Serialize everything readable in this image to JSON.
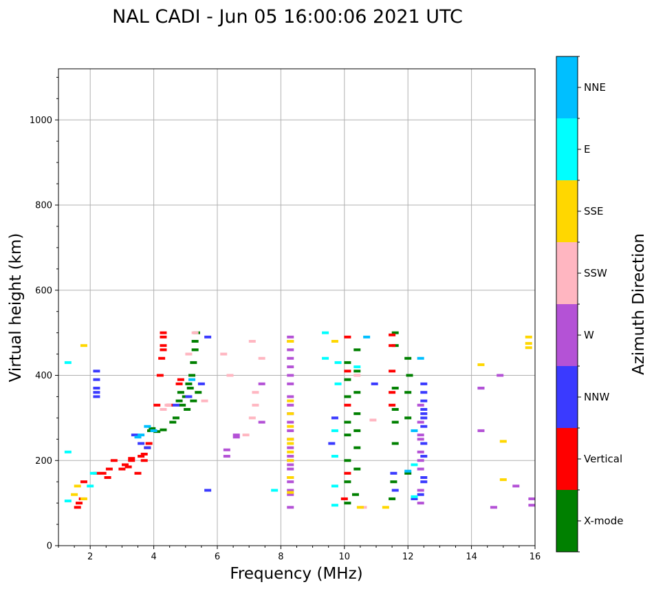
{
  "chart_data": {
    "type": "scatter",
    "title": "NAL CADI - Jun 05 16:00:06 2021 UTC",
    "xlabel": "Frequency (MHz)",
    "ylabel": "Virtual height (km)",
    "xlim": [
      1,
      16
    ],
    "ylim": [
      0,
      1120
    ],
    "xticks": [
      "2",
      "4",
      "6",
      "8",
      "10",
      "12",
      "14",
      "16"
    ],
    "yticks": [
      "0",
      "200",
      "400",
      "600",
      "800",
      "1000"
    ],
    "grid": true,
    "colorbar": {
      "label": "Azimuth Direction",
      "entries": [
        {
          "name": "X-mode",
          "color": "#008000"
        },
        {
          "name": "Vertical",
          "color": "#ff0000"
        },
        {
          "name": "NNW",
          "color": "#3a3aff"
        },
        {
          "name": "W",
          "color": "#b452d6"
        },
        {
          "name": "SSW",
          "color": "#ffb6c1"
        },
        {
          "name": "SSE",
          "color": "#ffd700"
        },
        {
          "name": "E",
          "color": "#00ffff"
        },
        {
          "name": "NNE",
          "color": "#00bfff"
        }
      ]
    },
    "series": [
      {
        "name": "X-mode",
        "color": "#008000",
        "points": [
          [
            3.9,
            270
          ],
          [
            3.95,
            275
          ],
          [
            4.1,
            268
          ],
          [
            4.3,
            272
          ],
          [
            4.6,
            290
          ],
          [
            4.7,
            300
          ],
          [
            4.8,
            340
          ],
          [
            4.85,
            360
          ],
          [
            4.9,
            330
          ],
          [
            5.0,
            350
          ],
          [
            5.1,
            380
          ],
          [
            5.15,
            370
          ],
          [
            5.2,
            400
          ],
          [
            5.25,
            430
          ],
          [
            5.3,
            460
          ],
          [
            5.3,
            480
          ],
          [
            5.35,
            500
          ],
          [
            5.05,
            320
          ],
          [
            5.25,
            340
          ],
          [
            5.4,
            360
          ],
          [
            10.1,
            100
          ],
          [
            10.1,
            150
          ],
          [
            10.1,
            200
          ],
          [
            10.1,
            260
          ],
          [
            10.1,
            290
          ],
          [
            10.1,
            350
          ],
          [
            10.1,
            390
          ],
          [
            10.1,
            430
          ],
          [
            10.35,
            120
          ],
          [
            10.4,
            180
          ],
          [
            10.4,
            230
          ],
          [
            10.4,
            270
          ],
          [
            10.4,
            310
          ],
          [
            10.4,
            360
          ],
          [
            10.4,
            410
          ],
          [
            10.4,
            460
          ],
          [
            11.5,
            110
          ],
          [
            11.55,
            150
          ],
          [
            11.6,
            240
          ],
          [
            11.6,
            290
          ],
          [
            11.6,
            320
          ],
          [
            11.6,
            370
          ],
          [
            11.6,
            470
          ],
          [
            11.6,
            500
          ],
          [
            12.0,
            170
          ],
          [
            12.0,
            300
          ],
          [
            12.0,
            360
          ],
          [
            12.0,
            440
          ],
          [
            12.05,
            400
          ]
        ]
      },
      {
        "name": "Vertical",
        "color": "#ff0000",
        "points": [
          [
            1.6,
            90
          ],
          [
            1.65,
            100
          ],
          [
            1.75,
            110
          ],
          [
            1.8,
            150
          ],
          [
            2.2,
            170
          ],
          [
            2.4,
            170
          ],
          [
            2.55,
            160
          ],
          [
            2.6,
            180
          ],
          [
            2.75,
            200
          ],
          [
            3.0,
            180
          ],
          [
            3.1,
            190
          ],
          [
            3.2,
            185
          ],
          [
            3.3,
            200
          ],
          [
            3.3,
            205
          ],
          [
            3.5,
            170
          ],
          [
            3.6,
            210
          ],
          [
            3.7,
            200
          ],
          [
            3.8,
            230
          ],
          [
            3.85,
            240
          ],
          [
            3.7,
            215
          ],
          [
            4.1,
            330
          ],
          [
            4.2,
            400
          ],
          [
            4.25,
            440
          ],
          [
            4.3,
            460
          ],
          [
            4.3,
            470
          ],
          [
            4.3,
            490
          ],
          [
            4.3,
            500
          ],
          [
            4.5,
            330
          ],
          [
            4.8,
            380
          ],
          [
            4.85,
            390
          ],
          [
            10.0,
            110
          ],
          [
            10.1,
            170
          ],
          [
            10.1,
            330
          ],
          [
            10.1,
            410
          ],
          [
            10.1,
            490
          ],
          [
            11.5,
            330
          ],
          [
            11.5,
            360
          ],
          [
            11.5,
            410
          ],
          [
            11.5,
            470
          ],
          [
            11.5,
            495
          ]
        ]
      },
      {
        "name": "NNW",
        "color": "#3a3aff",
        "points": [
          [
            2.2,
            350
          ],
          [
            2.2,
            360
          ],
          [
            2.2,
            370
          ],
          [
            2.2,
            390
          ],
          [
            2.2,
            410
          ],
          [
            3.4,
            260
          ],
          [
            3.6,
            240
          ],
          [
            3.8,
            230
          ],
          [
            4.7,
            330
          ],
          [
            5.1,
            350
          ],
          [
            5.5,
            380
          ],
          [
            5.7,
            130
          ],
          [
            5.7,
            490
          ],
          [
            9.6,
            240
          ],
          [
            9.7,
            300
          ],
          [
            10.95,
            380
          ],
          [
            11.55,
            170
          ],
          [
            11.6,
            130
          ],
          [
            12.2,
            110
          ],
          [
            12.4,
            120
          ],
          [
            12.5,
            150
          ],
          [
            12.5,
            160
          ],
          [
            12.5,
            210
          ],
          [
            12.5,
            240
          ],
          [
            12.5,
            280
          ],
          [
            12.5,
            300
          ],
          [
            12.5,
            310
          ],
          [
            12.5,
            320
          ],
          [
            12.5,
            340
          ],
          [
            12.5,
            360
          ],
          [
            12.5,
            380
          ],
          [
            14.3,
            370
          ]
        ]
      },
      {
        "name": "W",
        "color": "#b452d6",
        "points": [
          [
            6.3,
            210
          ],
          [
            6.3,
            225
          ],
          [
            6.6,
            255
          ],
          [
            6.6,
            260
          ],
          [
            7.4,
            380
          ],
          [
            7.4,
            290
          ],
          [
            8.3,
            90
          ],
          [
            8.3,
            120
          ],
          [
            8.3,
            130
          ],
          [
            8.3,
            150
          ],
          [
            8.3,
            160
          ],
          [
            8.3,
            180
          ],
          [
            8.3,
            190
          ],
          [
            8.3,
            200
          ],
          [
            8.3,
            210
          ],
          [
            8.3,
            230
          ],
          [
            8.3,
            250
          ],
          [
            8.3,
            270
          ],
          [
            8.3,
            290
          ],
          [
            8.3,
            310
          ],
          [
            8.3,
            330
          ],
          [
            8.3,
            350
          ],
          [
            8.3,
            380
          ],
          [
            8.3,
            400
          ],
          [
            8.3,
            420
          ],
          [
            8.3,
            440
          ],
          [
            8.3,
            460
          ],
          [
            8.3,
            480
          ],
          [
            8.3,
            490
          ],
          [
            12.4,
            100
          ],
          [
            12.4,
            130
          ],
          [
            12.4,
            180
          ],
          [
            12.4,
            200
          ],
          [
            12.4,
            220
          ],
          [
            12.4,
            250
          ],
          [
            12.4,
            260
          ],
          [
            12.4,
            290
          ],
          [
            12.4,
            330
          ],
          [
            14.3,
            270
          ],
          [
            14.3,
            370
          ],
          [
            14.7,
            90
          ],
          [
            14.9,
            400
          ],
          [
            15.4,
            140
          ],
          [
            15.9,
            95
          ],
          [
            15.9,
            110
          ]
        ]
      },
      {
        "name": "SSW",
        "color": "#ffb6c1",
        "points": [
          [
            4.3,
            320
          ],
          [
            4.45,
            330
          ],
          [
            5.1,
            450
          ],
          [
            5.3,
            500
          ],
          [
            5.6,
            340
          ],
          [
            6.2,
            450
          ],
          [
            6.4,
            400
          ],
          [
            6.9,
            260
          ],
          [
            7.1,
            300
          ],
          [
            7.2,
            330
          ],
          [
            7.2,
            360
          ],
          [
            7.4,
            440
          ],
          [
            7.1,
            480
          ],
          [
            10.6,
            90
          ],
          [
            10.9,
            295
          ],
          [
            10.4,
            400
          ]
        ]
      },
      {
        "name": "SSE",
        "color": "#ffd700",
        "points": [
          [
            1.5,
            120
          ],
          [
            1.6,
            140
          ],
          [
            1.8,
            110
          ],
          [
            1.8,
            470
          ],
          [
            8.3,
            125
          ],
          [
            8.3,
            160
          ],
          [
            8.3,
            200
          ],
          [
            8.3,
            220
          ],
          [
            8.3,
            240
          ],
          [
            8.3,
            250
          ],
          [
            8.3,
            280
          ],
          [
            8.3,
            310
          ],
          [
            8.3,
            340
          ],
          [
            8.3,
            480
          ],
          [
            9.7,
            480
          ],
          [
            10.5,
            90
          ],
          [
            11.3,
            90
          ],
          [
            14.3,
            425
          ],
          [
            15.0,
            245
          ],
          [
            15.0,
            155
          ],
          [
            15.8,
            465
          ],
          [
            15.8,
            475
          ],
          [
            15.8,
            490
          ]
        ]
      },
      {
        "name": "E",
        "color": "#00ffff",
        "points": [
          [
            1.3,
            105
          ],
          [
            1.3,
            220
          ],
          [
            1.3,
            430
          ],
          [
            2.0,
            140
          ],
          [
            2.1,
            170
          ],
          [
            7.8,
            130
          ],
          [
            9.4,
            440
          ],
          [
            9.4,
            500
          ],
          [
            9.7,
            95
          ],
          [
            9.7,
            140
          ],
          [
            9.7,
            210
          ],
          [
            9.7,
            270
          ],
          [
            9.8,
            380
          ],
          [
            9.8,
            430
          ],
          [
            10.4,
            420
          ],
          [
            12.2,
            115
          ],
          [
            12.2,
            190
          ]
        ]
      },
      {
        "name": "NNE",
        "color": "#00bfff",
        "points": [
          [
            3.5,
            255
          ],
          [
            3.6,
            260
          ],
          [
            3.8,
            280
          ],
          [
            4.0,
            270
          ],
          [
            5.2,
            390
          ],
          [
            10.7,
            490
          ],
          [
            12.0,
            175
          ],
          [
            12.2,
            270
          ],
          [
            12.4,
            440
          ]
        ]
      }
    ]
  }
}
